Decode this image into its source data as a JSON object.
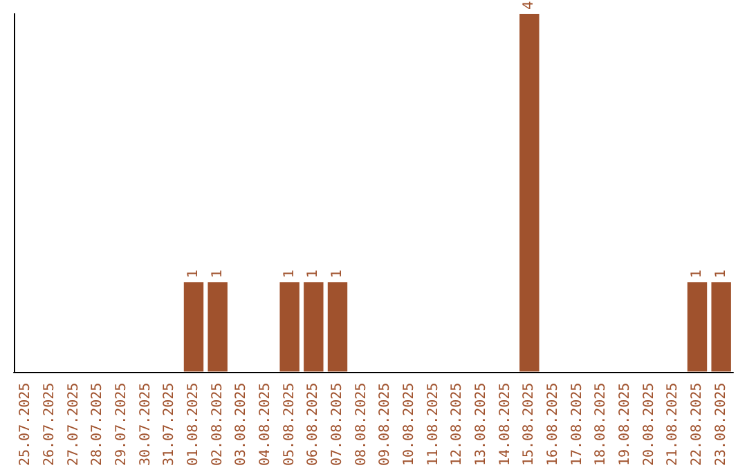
{
  "chart_data": {
    "type": "bar",
    "categories": [
      "25.07.2025",
      "26.07.2025",
      "27.07.2025",
      "28.07.2025",
      "29.07.2025",
      "30.07.2025",
      "31.07.2025",
      "01.08.2025",
      "02.08.2025",
      "03.08.2025",
      "04.08.2025",
      "05.08.2025",
      "06.08.2025",
      "07.08.2025",
      "08.08.2025",
      "09.08.2025",
      "10.08.2025",
      "11.08.2025",
      "12.08.2025",
      "13.08.2025",
      "14.08.2025",
      "15.08.2025",
      "16.08.2025",
      "17.08.2025",
      "18.08.2025",
      "19.08.2025",
      "20.08.2025",
      "21.08.2025",
      "22.08.2025",
      "23.08.2025"
    ],
    "values": [
      0,
      0,
      0,
      0,
      0,
      0,
      0,
      1,
      1,
      0,
      0,
      1,
      1,
      1,
      0,
      0,
      0,
      0,
      0,
      0,
      0,
      4,
      0,
      0,
      0,
      0,
      0,
      0,
      1,
      1
    ],
    "value_labels": [
      null,
      null,
      null,
      null,
      null,
      null,
      null,
      "1",
      "1",
      null,
      null,
      "1",
      "1",
      "1",
      null,
      null,
      null,
      null,
      null,
      null,
      null,
      "4",
      null,
      null,
      null,
      null,
      null,
      null,
      "1",
      "1"
    ],
    "color": "#a0522d",
    "grid": false
  }
}
